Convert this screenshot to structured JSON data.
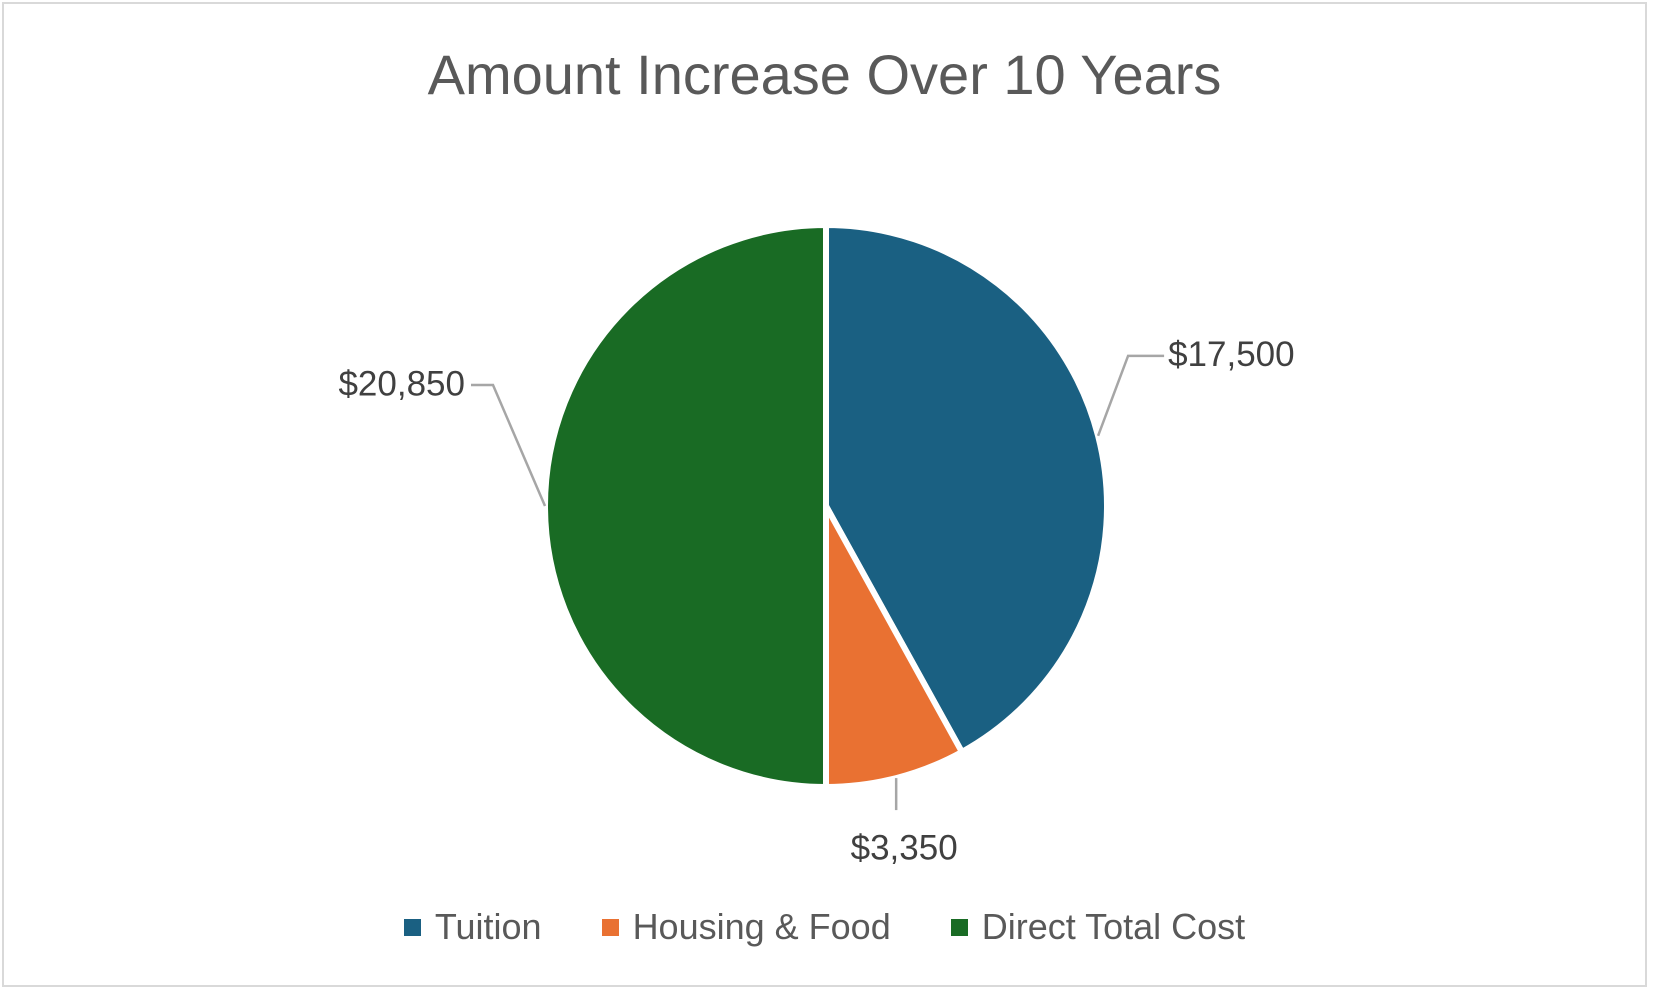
{
  "chart_data": {
    "type": "pie",
    "title": "Amount Increase Over 10 Years",
    "categories": [
      "Tuition",
      "Housing & Food",
      "Direct Total Cost"
    ],
    "values": [
      17500,
      3350,
      20850
    ],
    "data_labels": [
      "$17,500",
      "$3,350",
      "$20,850"
    ],
    "colors": [
      "#1a6082",
      "#e97132",
      "#196b24"
    ],
    "legend_position": "bottom",
    "start_angle_deg": 0,
    "direction": "clockwise"
  }
}
